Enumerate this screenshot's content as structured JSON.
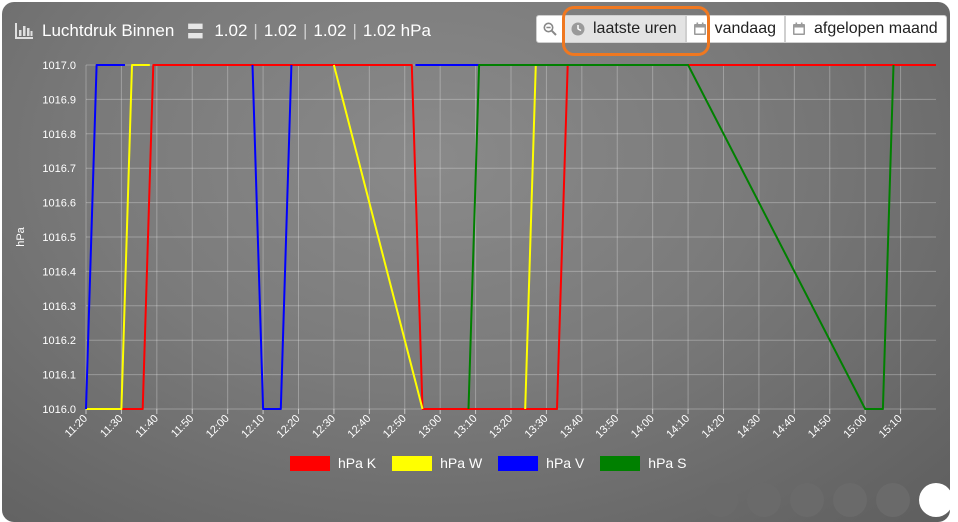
{
  "header": {
    "title": "Luchtdruk Binnen",
    "values": [
      "1.02",
      "1.02",
      "1.02",
      "1.02 hPa"
    ],
    "icon": "bar-chart-icon"
  },
  "toolbar": {
    "zoom_icon": "zoom-out-icon",
    "buttons": [
      {
        "label": "laatste uren",
        "icon": "clock-icon",
        "active": true
      },
      {
        "label": "vandaag",
        "icon": "calendar-icon",
        "active": false
      },
      {
        "label": "afgelopen maand",
        "icon": "calendar-icon",
        "active": false
      }
    ]
  },
  "colors": {
    "highlight": "#f07820",
    "panel": "#7a7a7a"
  },
  "chart_data": {
    "type": "line",
    "ylabel": "hPa",
    "ylim": [
      1016.0,
      1017.0
    ],
    "yticks": [
      "1016.0",
      "1016.1",
      "1016.2",
      "1016.3",
      "1016.4",
      "1016.5",
      "1016.6",
      "1016.7",
      "1016.8",
      "1016.9",
      "1017.0"
    ],
    "xticks": [
      "11:20",
      "11:30",
      "11:40",
      "11:50",
      "12:00",
      "12:10",
      "12:20",
      "12:30",
      "12:40",
      "12:50",
      "13:00",
      "13:10",
      "13:20",
      "13:30",
      "13:40",
      "13:50",
      "14:00",
      "14:10",
      "14:20",
      "14:30",
      "14:40",
      "14:50",
      "15:00",
      "15:10"
    ],
    "xrange": [
      "11:20",
      "15:20"
    ],
    "grid": true,
    "legend_position": "bottom",
    "series": [
      {
        "name": "hPa K",
        "color": "#ff0000",
        "points": [
          [
            "11:20",
            1016.0
          ],
          [
            "11:36",
            1016.0
          ],
          [
            "11:39",
            1017.0
          ],
          [
            "12:52",
            1017.0
          ],
          [
            "12:55",
            1016.0
          ],
          [
            "13:33",
            1016.0
          ],
          [
            "13:36",
            1017.0
          ],
          [
            "15:20",
            1017.0
          ]
        ]
      },
      {
        "name": "hPa W",
        "color": "#ffff00",
        "points": [
          [
            "11:20",
            1016.0
          ],
          [
            "11:30",
            1016.0
          ],
          [
            "11:33",
            1017.0
          ],
          [
            "11:38",
            1017.0
          ]
        ]
      },
      {
        "name": "hPa W",
        "color": "#ffff00",
        "points": [
          [
            "12:30",
            1017.0
          ],
          [
            "12:55",
            1016.0
          ]
        ]
      },
      {
        "name": "hPa W",
        "color": "#ffff00",
        "points": [
          [
            "13:24",
            1016.0
          ],
          [
            "13:27",
            1017.0
          ],
          [
            "13:32",
            1017.0
          ]
        ]
      },
      {
        "name": "hPa V",
        "color": "#0000ff",
        "points": [
          [
            "11:20",
            1016.0
          ],
          [
            "11:23",
            1017.0
          ],
          [
            "11:31",
            1017.0
          ]
        ]
      },
      {
        "name": "hPa V",
        "color": "#0000ff",
        "points": [
          [
            "12:07",
            1017.0
          ],
          [
            "12:10",
            1016.0
          ],
          [
            "12:15",
            1016.0
          ],
          [
            "12:18",
            1017.0
          ]
        ]
      },
      {
        "name": "hPa V",
        "color": "#0000ff",
        "points": [
          [
            "12:53",
            1017.0
          ],
          [
            "13:17",
            1017.0
          ]
        ]
      },
      {
        "name": "hPa S",
        "color": "#008000",
        "points": [
          [
            "13:08",
            1016.0
          ],
          [
            "13:11",
            1017.0
          ],
          [
            "14:10",
            1017.0
          ],
          [
            "15:00",
            1016.0
          ],
          [
            "15:05",
            1016.0
          ],
          [
            "15:08",
            1017.0
          ]
        ]
      }
    ],
    "legend": [
      {
        "name": "hPa K",
        "color": "#ff0000"
      },
      {
        "name": "hPa W",
        "color": "#ffff00"
      },
      {
        "name": "hPa V",
        "color": "#0000ff"
      },
      {
        "name": "hPa S",
        "color": "#008000"
      }
    ]
  },
  "pager": {
    "count": 6,
    "active_index": 5
  }
}
